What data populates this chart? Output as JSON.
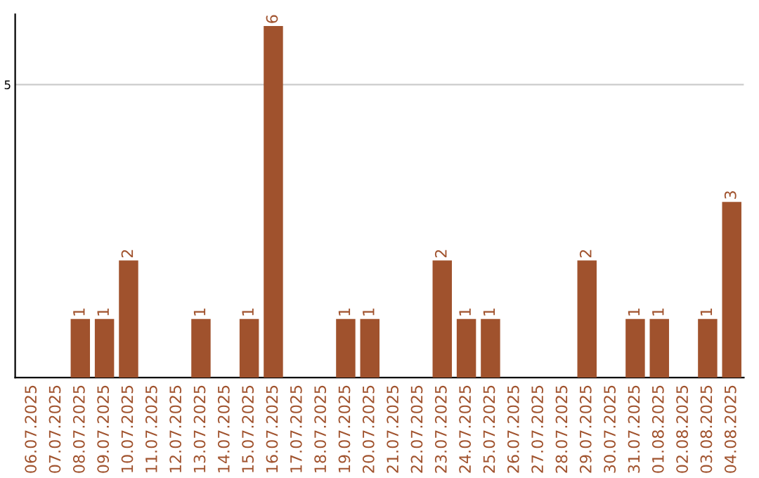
{
  "chart_data": {
    "type": "bar",
    "categories": [
      "06.07.2025",
      "07.07.2025",
      "08.07.2025",
      "09.07.2025",
      "10.07.2025",
      "11.07.2025",
      "12.07.2025",
      "13.07.2025",
      "14.07.2025",
      "15.07.2025",
      "16.07.2025",
      "17.07.2025",
      "18.07.2025",
      "19.07.2025",
      "20.07.2025",
      "21.07.2025",
      "22.07.2025",
      "23.07.2025",
      "24.07.2025",
      "25.07.2025",
      "26.07.2025",
      "27.07.2025",
      "28.07.2025",
      "29.07.2025",
      "30.07.2025",
      "31.07.2025",
      "01.08.2025",
      "02.08.2025",
      "03.08.2025",
      "04.08.2025"
    ],
    "values": [
      0,
      0,
      1,
      1,
      2,
      0,
      0,
      1,
      0,
      1,
      6,
      0,
      0,
      1,
      1,
      0,
      0,
      2,
      1,
      1,
      0,
      0,
      0,
      2,
      0,
      1,
      1,
      0,
      1,
      3
    ],
    "value_labels": [
      null,
      null,
      "1",
      "1",
      "2",
      null,
      null,
      "1",
      null,
      "1",
      "6",
      null,
      null,
      "1",
      "1",
      null,
      null,
      "2",
      "1",
      "1",
      null,
      null,
      null,
      "2",
      null,
      "1",
      "1",
      null,
      "1",
      "3"
    ],
    "color": "#a0522d",
    "ylim": [
      0,
      6.2
    ],
    "yticks": [
      5
    ],
    "grid": "y"
  }
}
